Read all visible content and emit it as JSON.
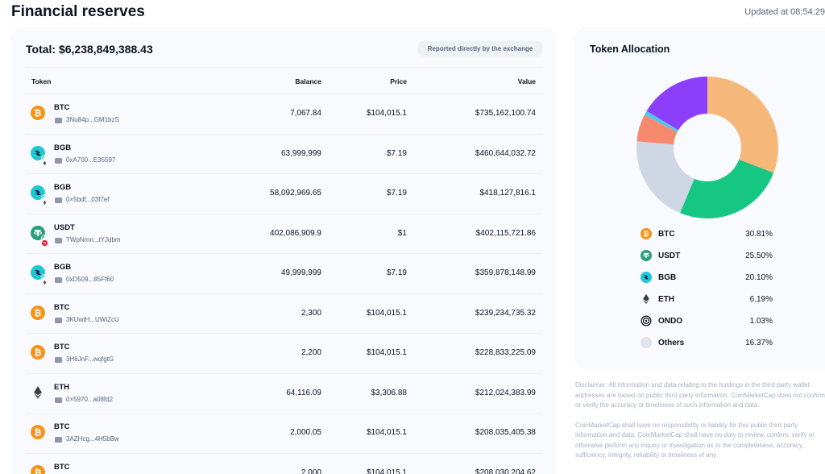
{
  "page": {
    "title": "Financial reserves",
    "updated": "Updated at 08:54:29"
  },
  "summary": {
    "total": "Total: $6,238,849,388.43",
    "badge": "Reported directly by the exchange"
  },
  "table": {
    "headers": {
      "token": "Token",
      "balance": "Balance",
      "price": "Price",
      "value": "Value"
    },
    "rows": [
      {
        "symbol": "BTC",
        "address": "3Nu84p...GM1bzS",
        "balance": "7,067.84",
        "price": "$104,015.1",
        "value": "$735,162,100.74",
        "icon": "btc-icon",
        "color": "#f7931a",
        "chain": ""
      },
      {
        "symbol": "BGB",
        "address": "0xA700...E35597",
        "balance": "63,999,999",
        "price": "$7.19",
        "value": "$460,644,032.72",
        "icon": "bgb-icon",
        "color": "#1fc7d4",
        "chain": "eth"
      },
      {
        "symbol": "BGB",
        "address": "0×5bdf...03f7ef",
        "balance": "58,092,969.65",
        "price": "$7.19",
        "value": "$418,127,816.1",
        "icon": "bgb-icon",
        "color": "#1fc7d4",
        "chain": "eth"
      },
      {
        "symbol": "USDT",
        "address": "TWpNmn...tYJdbm",
        "balance": "402,086,909.9",
        "price": "$1",
        "value": "$402,115,721.86",
        "icon": "usdt-icon",
        "color": "#26a17b",
        "chain": "tron"
      },
      {
        "symbol": "BGB",
        "address": "0xD509...85Ff60",
        "balance": "49,999,999",
        "price": "$7.19",
        "value": "$359,878,148.99",
        "icon": "bgb-icon",
        "color": "#1fc7d4",
        "chain": "eth"
      },
      {
        "symbol": "BTC",
        "address": "3KUwtH...UWiZcU",
        "balance": "2,300",
        "price": "$104,015.1",
        "value": "$239,234,735.32",
        "icon": "btc-icon",
        "color": "#f7931a",
        "chain": ""
      },
      {
        "symbol": "BTC",
        "address": "3H6JnF...wqfgtG",
        "balance": "2,200",
        "price": "$104,015.1",
        "value": "$228,833,225.09",
        "icon": "btc-icon",
        "color": "#f7931a",
        "chain": ""
      },
      {
        "symbol": "ETH",
        "address": "0×5970...a08fd2",
        "balance": "64,116.09",
        "price": "$3,306.88",
        "value": "$212,024,383.99",
        "icon": "eth-icon",
        "color": "#3c3c3d",
        "chain": ""
      },
      {
        "symbol": "BTC",
        "address": "3AZHcg...4H5bBw",
        "balance": "2,000.05",
        "price": "$104,015.1",
        "value": "$208,035,405.38",
        "icon": "btc-icon",
        "color": "#f7931a",
        "chain": ""
      },
      {
        "symbol": "BTC",
        "address": "",
        "balance": "2,000",
        "price": "$104,015.1",
        "value": "$208,030,204.62",
        "icon": "btc-icon",
        "color": "#f7931a",
        "chain": ""
      }
    ]
  },
  "allocation": {
    "title": "Token Allocation",
    "items": [
      {
        "name": "BTC",
        "pct": "30.81%",
        "value": 30.81,
        "color": "#f6b87a",
        "icon_color": "#f7931a",
        "icon": "btc-icon"
      },
      {
        "name": "USDT",
        "pct": "25.50%",
        "value": 25.5,
        "color": "#16c784",
        "icon_color": "#26a17b",
        "icon": "usdt-icon"
      },
      {
        "name": "BGB",
        "pct": "20.10%",
        "value": 20.1,
        "color": "#cfd6e4",
        "icon_color": "#1fc7d4",
        "icon": "bgb-icon"
      },
      {
        "name": "ETH",
        "pct": "6.19%",
        "value": 6.19,
        "color": "#f58a6e",
        "icon_color": "#3c3c3d",
        "icon": "eth-icon"
      },
      {
        "name": "ONDO",
        "pct": "1.03%",
        "value": 1.03,
        "color": "#4fc6f2",
        "icon_color": "#0d1421",
        "icon": "ondo-icon"
      },
      {
        "name": "Others",
        "pct": "16.37%",
        "value": 16.37,
        "color": "#8c3ffb",
        "icon_color": "#dfe3ea",
        "icon": "others-icon"
      }
    ]
  },
  "disclaimer": {
    "p1": "Disclaimer: All information and data relating to the holdings in the third-party wallet addresses are based on public third party information. CoinMarketCap does not confirm or verify the accuracy or timeliness of such information and data.",
    "p2": "CoinMarketCap shall have no responsibility or liability for this public third party information and data. CoinMarketCap shall have no duty to review, confirm, verify or otherwise perform any inquiry or investigation as to the completeness, accuracy, sufficiency, integrity, reliability or timeliness of any"
  }
}
